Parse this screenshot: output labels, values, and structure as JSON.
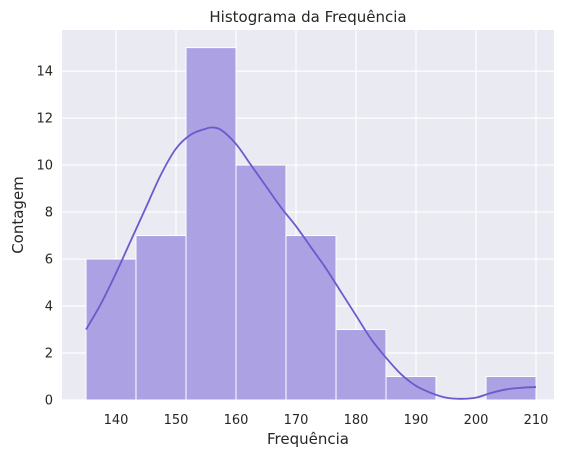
{
  "chart_data": {
    "type": "bar",
    "title": "Histograma da Frequência",
    "xlabel": "Frequência",
    "ylabel": "Contagem",
    "xlim": [
      131,
      213
    ],
    "ylim": [
      0,
      15.75
    ],
    "xticks": [
      140,
      150,
      160,
      170,
      180,
      190,
      200,
      210
    ],
    "yticks": [
      0,
      2,
      4,
      6,
      8,
      10,
      12,
      14
    ],
    "grid": true,
    "background_color": "#eaeaf2",
    "bar_color": "#aba1e3",
    "line_color": "#6a5acd",
    "bins": [
      {
        "start": 135.0,
        "end": 143.33,
        "count": 6
      },
      {
        "start": 143.33,
        "end": 151.67,
        "count": 7
      },
      {
        "start": 151.67,
        "end": 160.0,
        "count": 15
      },
      {
        "start": 160.0,
        "end": 168.33,
        "count": 10
      },
      {
        "start": 168.33,
        "end": 176.67,
        "count": 7
      },
      {
        "start": 176.67,
        "end": 185.0,
        "count": 3
      },
      {
        "start": 185.0,
        "end": 193.33,
        "count": 1
      },
      {
        "start": 193.33,
        "end": 201.67,
        "count": 0
      },
      {
        "start": 201.67,
        "end": 210.0,
        "count": 1
      }
    ],
    "kde": {
      "x": [
        135,
        137.5,
        140,
        142.5,
        145,
        147.5,
        150,
        152.5,
        155,
        156,
        157.5,
        160,
        162.5,
        165,
        167.5,
        170,
        172.5,
        175,
        177.5,
        180,
        182.5,
        185,
        187.5,
        190,
        192.5,
        195,
        197.5,
        200,
        202.5,
        205,
        207.5,
        210
      ],
      "y": [
        3.0,
        4.1,
        5.4,
        6.8,
        8.2,
        9.6,
        10.7,
        11.3,
        11.55,
        11.6,
        11.5,
        10.9,
        10.0,
        9.1,
        8.2,
        7.4,
        6.5,
        5.6,
        4.6,
        3.6,
        2.6,
        1.8,
        1.1,
        0.6,
        0.3,
        0.1,
        0.05,
        0.1,
        0.3,
        0.45,
        0.52,
        0.55
      ]
    }
  }
}
